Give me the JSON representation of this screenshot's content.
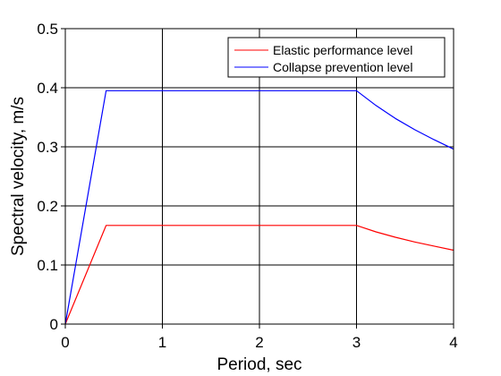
{
  "chart_data": {
    "type": "line",
    "xlabel": "Period, sec",
    "ylabel": "Spectral velocity, m/s",
    "xlim": [
      0,
      4
    ],
    "ylim": [
      0,
      0.5
    ],
    "x_ticks": [
      0,
      1,
      2,
      3,
      4
    ],
    "y_ticks": [
      0,
      0.1,
      0.2,
      0.3,
      0.4,
      0.5
    ],
    "x_tick_labels": [
      "0",
      "1",
      "2",
      "3",
      "4"
    ],
    "y_tick_labels": [
      "0",
      "0.1",
      "0.2",
      "0.3",
      "0.4",
      "0.5"
    ],
    "grid": true,
    "legend_position": "top-right",
    "series": [
      {
        "name": "Elastic performance level",
        "color": "#ff0000",
        "points": [
          [
            0,
            0
          ],
          [
            0.42,
            0.167
          ],
          [
            3.0,
            0.167
          ],
          [
            3.2,
            0.156
          ],
          [
            3.4,
            0.147
          ],
          [
            3.6,
            0.139
          ],
          [
            3.8,
            0.132
          ],
          [
            4.0,
            0.125
          ]
        ]
      },
      {
        "name": "Collapse prevention level",
        "color": "#0000ff",
        "points": [
          [
            0,
            0
          ],
          [
            0.42,
            0.395
          ],
          [
            3.0,
            0.395
          ],
          [
            3.2,
            0.37
          ],
          [
            3.4,
            0.348
          ],
          [
            3.6,
            0.329
          ],
          [
            3.8,
            0.312
          ],
          [
            4.0,
            0.296
          ]
        ]
      }
    ]
  }
}
